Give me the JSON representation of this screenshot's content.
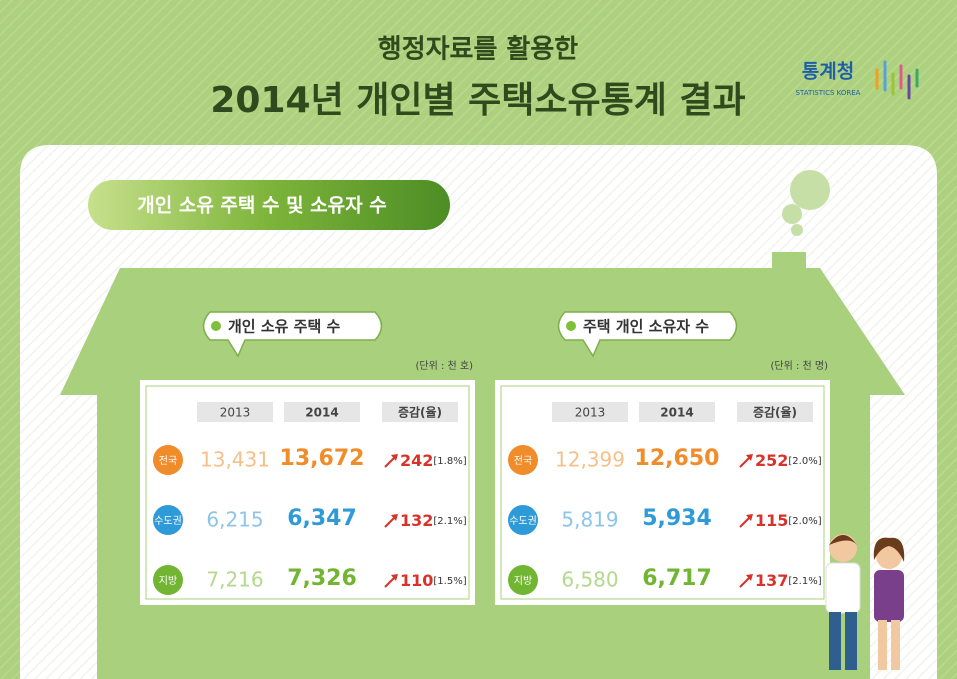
{
  "header": {
    "subtitle": "행정자료를 활용한",
    "title": "2014년 개인별 주택소유통계 결과",
    "logo": "통계청",
    "logo_en": "STATISTICS KOREA"
  },
  "section_title": "개인 소유 주택 수 및 소유자 수",
  "tables": [
    {
      "title": "개인 소유 주택 수",
      "unit": "(단위 : 천 호)",
      "columns": [
        "2013",
        "2014",
        "증감(율)"
      ],
      "rows": [
        {
          "region": "전국",
          "v2013": "13,431",
          "v2014": "13,672",
          "change": "242",
          "rate": "[1.8%]"
        },
        {
          "region": "수도권",
          "v2013": "6,215",
          "v2014": "6,347",
          "change": "132",
          "rate": "[2.1%]"
        },
        {
          "region": "지방",
          "v2013": "7,216",
          "v2014": "7,326",
          "change": "110",
          "rate": "[1.5%]"
        }
      ]
    },
    {
      "title": "주택 개인 소유자 수",
      "unit": "(단위 : 천 명)",
      "columns": [
        "2013",
        "2014",
        "증감(율)"
      ],
      "rows": [
        {
          "region": "전국",
          "v2013": "12,399",
          "v2014": "12,650",
          "change": "252",
          "rate": "[2.0%]"
        },
        {
          "region": "수도권",
          "v2013": "5,819",
          "v2014": "5,934",
          "change": "115",
          "rate": "[2.0%]"
        },
        {
          "region": "지방",
          "v2013": "6,580",
          "v2014": "6,717",
          "change": "137",
          "rate": "[2.1%]"
        }
      ]
    }
  ]
}
